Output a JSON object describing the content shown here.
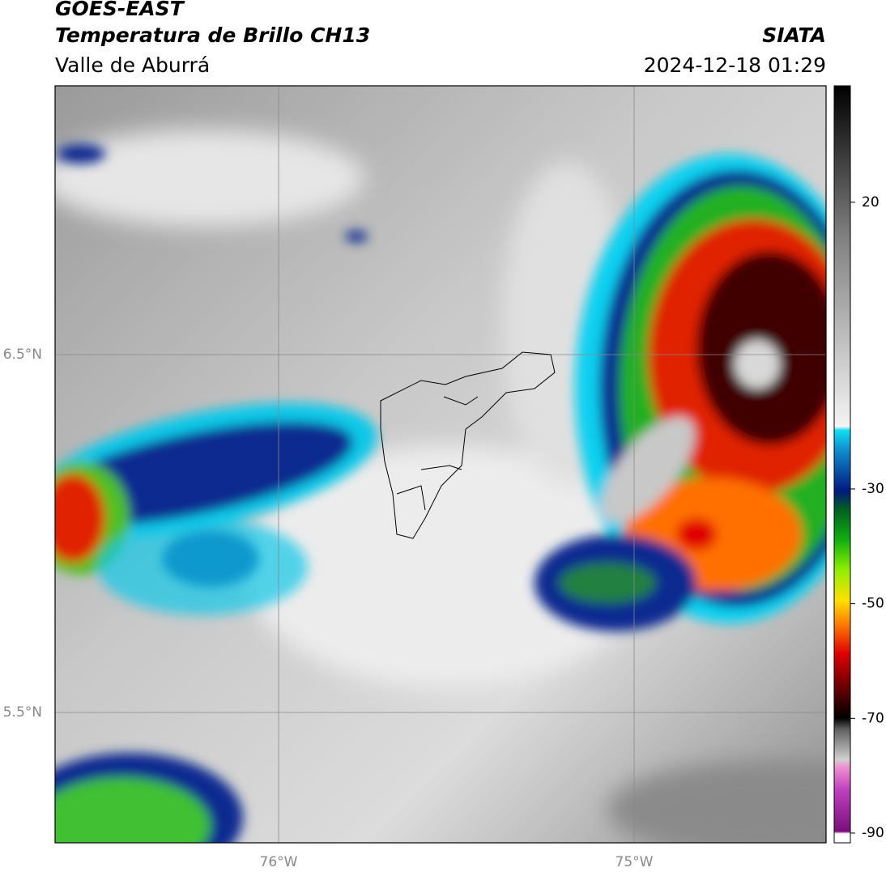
{
  "header": {
    "title": "GOES-EAST",
    "subtitle": "Temperatura de Brillo CH13",
    "region": "Valle de Aburrá",
    "agency": "SIATA",
    "timestamp": "2024-12-18 01:29"
  },
  "map": {
    "lat_labels": [
      "6.5°N",
      "5.5°N"
    ],
    "lon_labels": [
      "76°W",
      "75°W"
    ]
  },
  "colorbar": {
    "range": [
      -91.7,
      40.3
    ],
    "ticks": [
      20,
      -30,
      -50,
      -70,
      -90
    ]
  }
}
